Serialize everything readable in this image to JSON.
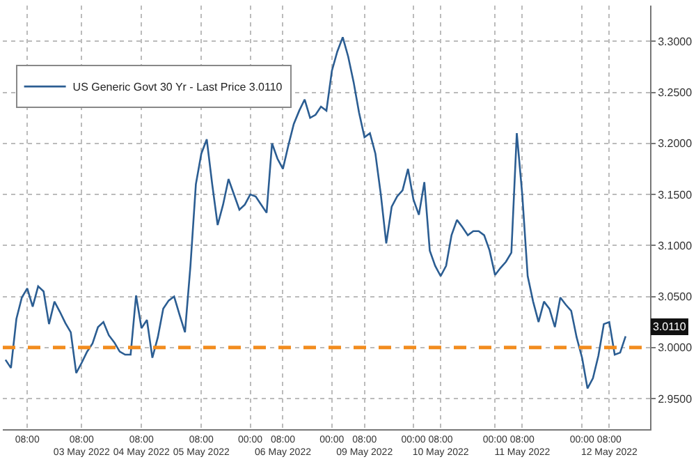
{
  "chart_data": {
    "type": "line",
    "categories": [
      null,
      null,
      null,
      null,
      "08:00",
      null,
      null,
      null,
      null,
      null,
      null,
      null,
      null,
      null,
      "08:00\n03 May 2022",
      null,
      null,
      null,
      null,
      null,
      null,
      null,
      null,
      null,
      null,
      "08:00\n04 May 2022",
      null,
      null,
      null,
      null,
      null,
      null,
      null,
      null,
      null,
      null,
      "08:00\n05 May 2022",
      null,
      null,
      null,
      null,
      null,
      null,
      null,
      null,
      "00:00",
      null,
      null,
      null,
      null,
      null,
      "08:00\n06 May 2022",
      null,
      null,
      null,
      null,
      null,
      null,
      null,
      null,
      "00:00",
      null,
      null,
      null,
      null,
      null,
      "08:00\n09 May 2022",
      null,
      null,
      null,
      null,
      null,
      null,
      null,
      null,
      "00:00",
      null,
      null,
      null,
      null,
      "08:00\n10 May 2022",
      null,
      null,
      null,
      null,
      null,
      null,
      null,
      null,
      null,
      "00:00",
      null,
      null,
      null,
      null,
      "08:00\n11 May 2022",
      null,
      null,
      null,
      null,
      null,
      null,
      null,
      null,
      null,
      null,
      "00:00",
      null,
      null,
      null,
      null,
      "08:00\n12 May 2022",
      null,
      null,
      null,
      null,
      null,
      null,
      null
    ],
    "series": [
      {
        "name": "US Generic Govt 30 Yr - Last Price 3.0110",
        "color": "#2b5d92",
        "values": [
          2.988,
          2.98,
          3.028,
          3.049,
          3.058,
          3.04,
          3.06,
          3.055,
          3.023,
          3.045,
          3.035,
          3.024,
          3.015,
          2.975,
          2.985,
          2.996,
          3.004,
          3.02,
          3.025,
          3.012,
          3.005,
          2.996,
          2.993,
          2.993,
          3.051,
          3.019,
          3.027,
          2.99,
          3.01,
          3.038,
          3.046,
          3.05,
          3.032,
          3.015,
          3.08,
          3.16,
          3.19,
          3.204,
          3.16,
          3.12,
          3.14,
          3.165,
          3.15,
          3.135,
          3.14,
          3.15,
          3.148,
          3.14,
          3.132,
          3.2,
          3.185,
          3.175,
          3.198,
          3.219,
          3.232,
          3.243,
          3.225,
          3.228,
          3.236,
          3.232,
          3.271,
          3.29,
          3.304,
          3.285,
          3.26,
          3.23,
          3.206,
          3.21,
          3.19,
          3.15,
          3.102,
          3.138,
          3.148,
          3.154,
          3.175,
          3.145,
          3.13,
          3.162,
          3.095,
          3.08,
          3.07,
          3.08,
          3.11,
          3.125,
          3.118,
          3.11,
          3.114,
          3.114,
          3.11,
          3.095,
          3.071,
          3.078,
          3.084,
          3.093,
          3.21,
          3.15,
          3.07,
          3.045,
          3.025,
          3.045,
          3.038,
          3.02,
          3.049,
          3.042,
          3.036,
          3.01,
          2.99,
          2.96,
          2.97,
          2.992,
          3.023,
          3.025,
          2.993,
          2.995,
          3.011,
          null,
          null,
          null,
          null
        ]
      }
    ],
    "ylim": [
      2.92,
      3.335
    ],
    "yticks": [
      {
        "value": 2.95,
        "label": "2.9500"
      },
      {
        "value": 3.0,
        "label": "3.0000"
      },
      {
        "value": 3.05,
        "label": "3.0500"
      },
      {
        "value": 3.1,
        "label": "3.1000"
      },
      {
        "value": 3.15,
        "label": "3.1500"
      },
      {
        "value": 3.2,
        "label": "3.2000"
      },
      {
        "value": 3.25,
        "label": "3.2500"
      },
      {
        "value": 3.3,
        "label": "3.3000"
      }
    ],
    "ref_lines": [
      {
        "axis": "y",
        "value": 3.0,
        "color": "#f28c1e",
        "line_style": "dashed"
      }
    ],
    "annotations": [
      "3.0110"
    ],
    "grid": true,
    "legend": "top left",
    "marker": "none",
    "line_style": "solid"
  }
}
